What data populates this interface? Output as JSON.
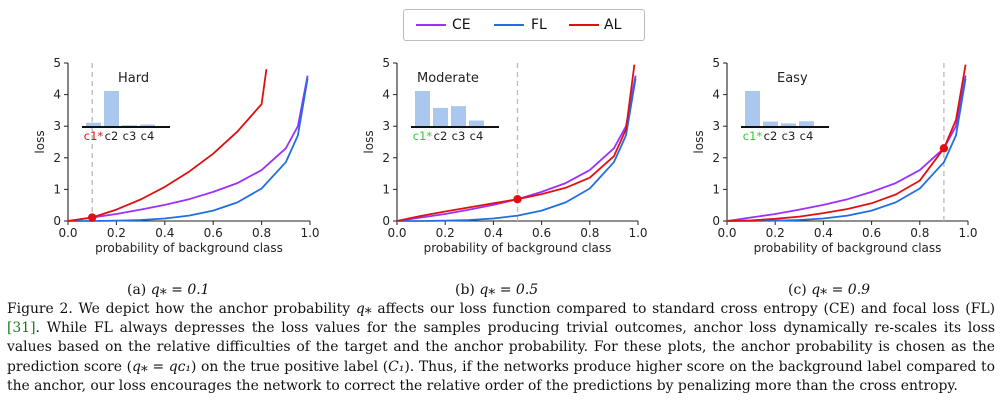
{
  "legend": [
    {
      "label": "CE",
      "color": "#9b30ff"
    },
    {
      "label": "FL",
      "color": "#1f6fe0"
    },
    {
      "label": "AL",
      "color": "#e01010"
    }
  ],
  "chart_data": [
    {
      "type": "line",
      "panel": "(a)",
      "anchor_q": 0.1,
      "xlabel": "probability of background class",
      "ylabel": "loss",
      "xlim": [
        0.0,
        1.0
      ],
      "ylim": [
        0,
        5
      ],
      "xticks": [
        "0.0",
        "0.2",
        "0.4",
        "0.6",
        "0.8",
        "1.0"
      ],
      "yticks": [
        "0",
        "1",
        "2",
        "3",
        "4",
        "5"
      ],
      "series": [
        {
          "name": "CE",
          "x": [
            0.0,
            0.1,
            0.2,
            0.3,
            0.4,
            0.5,
            0.6,
            0.7,
            0.8,
            0.9,
            0.95,
            0.99
          ],
          "y": [
            0.0,
            0.11,
            0.22,
            0.36,
            0.51,
            0.69,
            0.92,
            1.2,
            1.61,
            2.3,
            3.0,
            4.6
          ]
        },
        {
          "name": "FL",
          "x": [
            0.0,
            0.1,
            0.2,
            0.3,
            0.4,
            0.5,
            0.6,
            0.7,
            0.8,
            0.9,
            0.95,
            0.99
          ],
          "y": [
            0.0,
            0.001,
            0.009,
            0.032,
            0.08,
            0.17,
            0.33,
            0.59,
            1.03,
            1.86,
            2.71,
            4.51
          ]
        },
        {
          "name": "AL",
          "x": [
            0.0,
            0.1,
            0.2,
            0.3,
            0.4,
            0.5,
            0.6,
            0.7,
            0.8,
            0.82
          ],
          "y": [
            0.0,
            0.11,
            0.36,
            0.68,
            1.08,
            1.56,
            2.13,
            2.83,
            3.7,
            4.8
          ]
        }
      ],
      "anchor_point": {
        "x": 0.1,
        "y": 0.11
      },
      "inset": {
        "label": "Hard",
        "categories": [
          "c1*",
          "c2",
          "c3",
          "c4"
        ],
        "values": [
          0.12,
          1.0,
          0.05,
          0.07
        ],
        "highlight": "c1*",
        "highlight_color": "#e01010"
      }
    },
    {
      "type": "line",
      "panel": "(b)",
      "anchor_q": 0.5,
      "xlabel": "probability of background class",
      "ylabel": "loss",
      "xlim": [
        0.0,
        1.0
      ],
      "ylim": [
        0,
        5
      ],
      "xticks": [
        "0.0",
        "0.2",
        "0.4",
        "0.6",
        "0.8",
        "1.0"
      ],
      "yticks": [
        "0",
        "1",
        "2",
        "3",
        "4",
        "5"
      ],
      "series": [
        {
          "name": "CE",
          "x": [
            0.0,
            0.1,
            0.2,
            0.3,
            0.4,
            0.5,
            0.6,
            0.7,
            0.8,
            0.9,
            0.95,
            0.99
          ],
          "y": [
            0.0,
            0.11,
            0.22,
            0.36,
            0.51,
            0.69,
            0.92,
            1.2,
            1.61,
            2.3,
            3.0,
            4.6
          ]
        },
        {
          "name": "FL",
          "x": [
            0.0,
            0.1,
            0.2,
            0.3,
            0.4,
            0.5,
            0.6,
            0.7,
            0.8,
            0.9,
            0.95,
            0.99
          ],
          "y": [
            0.0,
            0.001,
            0.009,
            0.032,
            0.08,
            0.17,
            0.33,
            0.59,
            1.03,
            1.86,
            2.71,
            4.51
          ]
        },
        {
          "name": "AL",
          "x": [
            0.0,
            0.1,
            0.2,
            0.3,
            0.4,
            0.5,
            0.6,
            0.7,
            0.8,
            0.9,
            0.95,
            0.985
          ],
          "y": [
            0.0,
            0.16,
            0.3,
            0.43,
            0.56,
            0.69,
            0.85,
            1.05,
            1.37,
            2.05,
            2.9,
            4.95
          ]
        }
      ],
      "anchor_point": {
        "x": 0.5,
        "y": 0.69
      },
      "inset": {
        "label": "Moderate",
        "categories": [
          "c1*",
          "c2",
          "c3",
          "c4"
        ],
        "values": [
          1.0,
          0.53,
          0.58,
          0.18
        ],
        "highlight": "c1*",
        "highlight_color": "#2ecc2e"
      }
    },
    {
      "type": "line",
      "panel": "(c)",
      "anchor_q": 0.9,
      "xlabel": "probability of background class",
      "ylabel": "loss",
      "xlim": [
        0.0,
        1.0
      ],
      "ylim": [
        0,
        5
      ],
      "xticks": [
        "0.0",
        "0.2",
        "0.4",
        "0.6",
        "0.8",
        "1.0"
      ],
      "yticks": [
        "0",
        "1",
        "2",
        "3",
        "4",
        "5"
      ],
      "series": [
        {
          "name": "CE",
          "x": [
            0.0,
            0.1,
            0.2,
            0.3,
            0.4,
            0.5,
            0.6,
            0.7,
            0.8,
            0.9,
            0.95,
            0.99
          ],
          "y": [
            0.0,
            0.11,
            0.22,
            0.36,
            0.51,
            0.69,
            0.92,
            1.2,
            1.61,
            2.3,
            3.0,
            4.6
          ]
        },
        {
          "name": "FL",
          "x": [
            0.0,
            0.1,
            0.2,
            0.3,
            0.4,
            0.5,
            0.6,
            0.7,
            0.8,
            0.9,
            0.95,
            0.99
          ],
          "y": [
            0.0,
            0.001,
            0.009,
            0.032,
            0.08,
            0.17,
            0.33,
            0.59,
            1.03,
            1.86,
            2.71,
            4.51
          ]
        },
        {
          "name": "AL",
          "x": [
            0.0,
            0.1,
            0.2,
            0.3,
            0.4,
            0.5,
            0.6,
            0.7,
            0.8,
            0.9,
            0.95,
            0.99
          ],
          "y": [
            0.0,
            0.02,
            0.07,
            0.14,
            0.25,
            0.38,
            0.56,
            0.84,
            1.28,
            2.3,
            3.2,
            4.95
          ]
        }
      ],
      "anchor_point": {
        "x": 0.9,
        "y": 2.3
      },
      "inset": {
        "label": "Easy",
        "categories": [
          "c1*",
          "c2",
          "c3",
          "c4"
        ],
        "values": [
          1.0,
          0.15,
          0.1,
          0.16
        ],
        "highlight": "c1*",
        "highlight_color": "#2ecc2e"
      }
    }
  ],
  "subcaptions": [
    {
      "label": "(a)",
      "equation": "q⁎ = 0.1"
    },
    {
      "label": "(b)",
      "equation": "q⁎ = 0.5"
    },
    {
      "label": "(c)",
      "equation": "q⁎ = 0.9"
    }
  ],
  "caption": {
    "part1": "Figure 2. We depict how the anchor probability ",
    "q_symbol": "q⁎",
    "part2": " affects our loss function compared to standard cross entropy (CE) and focal loss (FL) ",
    "ref": "[31]",
    "part3": ". While FL always depresses the loss values for the samples producing trivial outcomes, anchor loss dynamically re-scales its loss values based on the relative difficulties of the target and the anchor probability. For these plots, the anchor probability is chosen as the prediction score (",
    "equation": "q⁎ = qᴄ₁",
    "part4": ") on the true positive label (",
    "label_c1": "C₁",
    "part5": "). Thus, if the networks produce higher score on the background label compared to the anchor, our loss encourages the network to correct the relative order of the predictions by penalizing more than the cross entropy."
  }
}
